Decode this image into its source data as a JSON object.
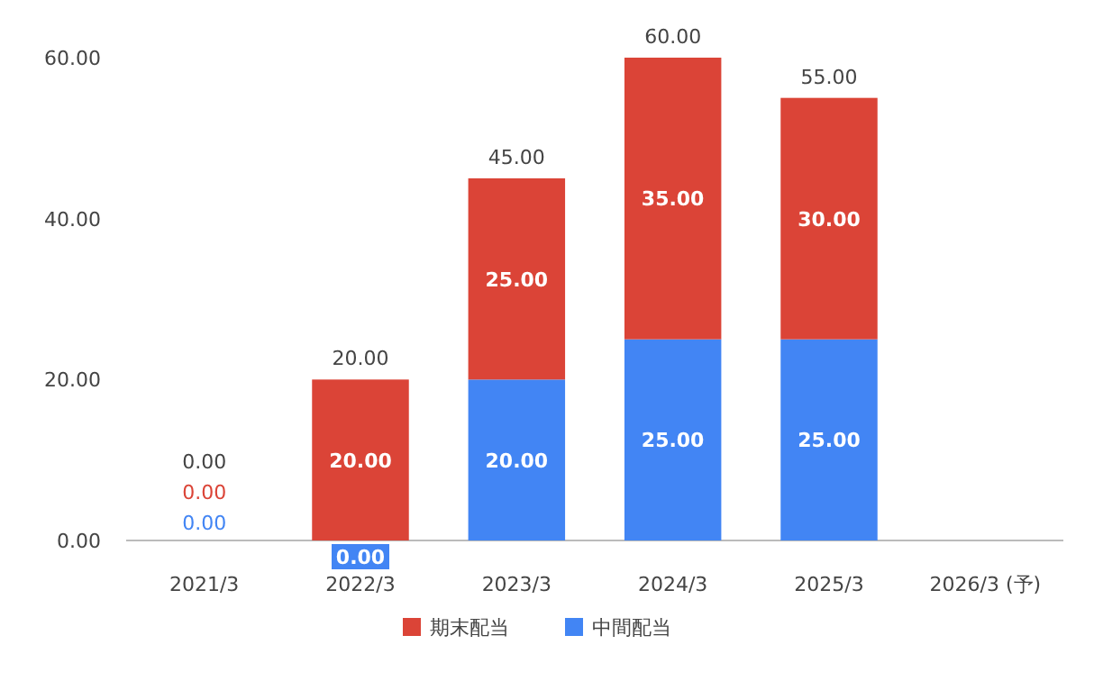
{
  "chart_data": {
    "type": "bar",
    "stacked": true,
    "categories": [
      "2021/3",
      "2022/3",
      "2023/3",
      "2024/3",
      "2025/3",
      "2026/3 (予)"
    ],
    "series": [
      {
        "name": "中間配当",
        "color": "#4285f4",
        "values": [
          0,
          0,
          20,
          25,
          25,
          0
        ],
        "value_labels": [
          "0.00",
          "0.00",
          "20.00",
          "25.00",
          "25.00",
          null
        ]
      },
      {
        "name": "期末配当",
        "color": "#db4437",
        "values": [
          0,
          20,
          25,
          35,
          30,
          0
        ],
        "value_labels": [
          "0.00",
          "20.00",
          "25.00",
          "35.00",
          "30.00",
          null
        ]
      }
    ],
    "totals": [
      "0.00",
      "20.00",
      "45.00",
      "60.00",
      "55.00",
      null
    ],
    "ylim": [
      0,
      60
    ],
    "yticks": [
      {
        "value": 0,
        "label": "0.00"
      },
      {
        "value": 20,
        "label": "20.00"
      },
      {
        "value": 40,
        "label": "40.00"
      },
      {
        "value": 60,
        "label": "60.00"
      }
    ],
    "legend": "bottom"
  }
}
